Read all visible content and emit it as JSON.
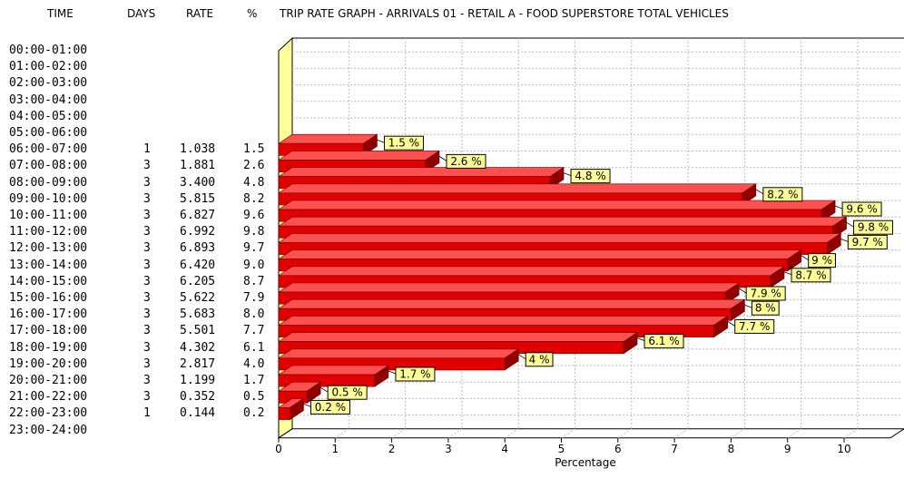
{
  "header": {
    "time": "TIME",
    "days": "DAYS",
    "rate": "RATE",
    "pct": "%",
    "title": "TRIP RATE GRAPH - ARRIVALS   01 - RETAIL  A - FOOD SUPERSTORE      TOTAL VEHICLES"
  },
  "rows": [
    {
      "time": "00:00-01:00",
      "days": "",
      "rate": "",
      "pct": ""
    },
    {
      "time": "01:00-02:00",
      "days": "",
      "rate": "",
      "pct": ""
    },
    {
      "time": "02:00-03:00",
      "days": "",
      "rate": "",
      "pct": ""
    },
    {
      "time": "03:00-04:00",
      "days": "",
      "rate": "",
      "pct": ""
    },
    {
      "time": "04:00-05:00",
      "days": "",
      "rate": "",
      "pct": ""
    },
    {
      "time": "05:00-06:00",
      "days": "",
      "rate": "",
      "pct": ""
    },
    {
      "time": "06:00-07:00",
      "days": "1",
      "rate": "1.038",
      "pct": "1.5"
    },
    {
      "time": "07:00-08:00",
      "days": "3",
      "rate": "1.881",
      "pct": "2.6"
    },
    {
      "time": "08:00-09:00",
      "days": "3",
      "rate": "3.400",
      "pct": "4.8"
    },
    {
      "time": "09:00-10:00",
      "days": "3",
      "rate": "5.815",
      "pct": "8.2"
    },
    {
      "time": "10:00-11:00",
      "days": "3",
      "rate": "6.827",
      "pct": "9.6"
    },
    {
      "time": "11:00-12:00",
      "days": "3",
      "rate": "6.992",
      "pct": "9.8"
    },
    {
      "time": "12:00-13:00",
      "days": "3",
      "rate": "6.893",
      "pct": "9.7"
    },
    {
      "time": "13:00-14:00",
      "days": "3",
      "rate": "6.420",
      "pct": "9.0"
    },
    {
      "time": "14:00-15:00",
      "days": "3",
      "rate": "6.205",
      "pct": "8.7"
    },
    {
      "time": "15:00-16:00",
      "days": "3",
      "rate": "5.622",
      "pct": "7.9"
    },
    {
      "time": "16:00-17:00",
      "days": "3",
      "rate": "5.683",
      "pct": "8.0"
    },
    {
      "time": "17:00-18:00",
      "days": "3",
      "rate": "5.501",
      "pct": "7.7"
    },
    {
      "time": "18:00-19:00",
      "days": "3",
      "rate": "4.302",
      "pct": "6.1"
    },
    {
      "time": "19:00-20:00",
      "days": "3",
      "rate": "2.817",
      "pct": "4.0"
    },
    {
      "time": "20:00-21:00",
      "days": "3",
      "rate": "1.199",
      "pct": "1.7"
    },
    {
      "time": "21:00-22:00",
      "days": "3",
      "rate": "0.352",
      "pct": "0.5"
    },
    {
      "time": "22:00-23:00",
      "days": "1",
      "rate": "0.144",
      "pct": "0.2"
    },
    {
      "time": "23:00-24:00",
      "days": "",
      "rate": "",
      "pct": ""
    }
  ],
  "chart_data": {
    "type": "bar",
    "orientation": "horizontal",
    "categories": [
      "00:00-01:00",
      "01:00-02:00",
      "02:00-03:00",
      "03:00-04:00",
      "04:00-05:00",
      "05:00-06:00",
      "06:00-07:00",
      "07:00-08:00",
      "08:00-09:00",
      "09:00-10:00",
      "10:00-11:00",
      "11:00-12:00",
      "12:00-13:00",
      "13:00-14:00",
      "14:00-15:00",
      "15:00-16:00",
      "16:00-17:00",
      "17:00-18:00",
      "18:00-19:00",
      "19:00-20:00",
      "20:00-21:00",
      "21:00-22:00",
      "22:00-23:00",
      "23:00-24:00"
    ],
    "values": [
      0,
      0,
      0,
      0,
      0,
      0,
      1.5,
      2.6,
      4.8,
      8.2,
      9.6,
      9.8,
      9.7,
      9.0,
      8.7,
      7.9,
      8.0,
      7.7,
      6.1,
      4.0,
      1.7,
      0.5,
      0.2,
      0
    ],
    "data_labels": [
      "",
      "",
      "",
      "",
      "",
      "",
      "1.5 %",
      "2.6 %",
      "4.8 %",
      "8.2 %",
      "9.6 %",
      "9.8 %",
      "9.7 %",
      "9 %",
      "8.7 %",
      "7.9 %",
      "8 %",
      "7.7 %",
      "6.1 %",
      "4 %",
      "1.7 %",
      "0.5 %",
      "0.2 %",
      ""
    ],
    "title": "TRIP RATE GRAPH - ARRIVALS   01 - RETAIL  A - FOOD SUPERSTORE      TOTAL VEHICLES",
    "xlabel": "Percentage",
    "ylabel": "",
    "xlim": [
      0,
      10
    ],
    "xticks": [
      "0",
      "1",
      "2",
      "3",
      "4",
      "5",
      "6",
      "7",
      "8",
      "9",
      "10"
    ],
    "grid": true,
    "bar_color": "#e00000",
    "label_bg": "#ffff99",
    "wall_color": "#ffff99"
  }
}
